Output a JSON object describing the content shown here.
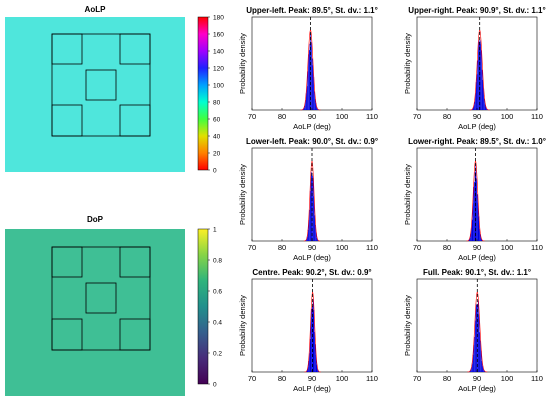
{
  "maps": [
    {
      "title": "AoLP",
      "image_color": "#4fe6dc",
      "colorbar": {
        "ticks": [
          "180",
          "160",
          "140",
          "120",
          "100",
          "80",
          "60",
          "40",
          "20",
          "0"
        ],
        "colormap": [
          "#ff0000",
          "#ff00c8",
          "#a000ff",
          "#2020ff",
          "#00a0ff",
          "#00ffd0",
          "#40ff40",
          "#e0e000",
          "#ff8000",
          "#ff0000"
        ]
      }
    },
    {
      "title": "DoP",
      "image_color": "#3fbf95",
      "colorbar": {
        "ticks": [
          "1",
          "0.8",
          "0.6",
          "0.4",
          "0.2",
          "0"
        ],
        "colormap": [
          "#fcf024",
          "#86d446",
          "#2fb47c",
          "#21908c",
          "#355f8d",
          "#472c7a",
          "#440154"
        ]
      }
    }
  ],
  "chart_data": [
    {
      "type": "bar",
      "title": "Upper-left. Peak: 89.5°, St. dv.: 1.1°",
      "xlabel": "AoLP (deg)",
      "ylabel": "Probability density",
      "xlim": [
        70,
        110
      ],
      "xticks": [
        "70",
        "80",
        "90",
        "100",
        "110"
      ],
      "peak": 89.5,
      "std": 1.1,
      "color": "#0000e0",
      "marker_color": "#ff0000"
    },
    {
      "type": "bar",
      "title": "Upper-right. Peak: 90.9°, St. dv.: 1.1°",
      "xlabel": "AoLP (deg)",
      "ylabel": "Probability density",
      "xlim": [
        70,
        110
      ],
      "xticks": [
        "70",
        "80",
        "90",
        "100",
        "110"
      ],
      "peak": 90.9,
      "std": 1.1,
      "color": "#0000e0",
      "marker_color": "#ff0000"
    },
    {
      "type": "bar",
      "title": "Lower-left. Peak: 90.0°, St. dv.: 0.9°",
      "xlabel": "AoLP (deg)",
      "ylabel": "Probability density",
      "xlim": [
        70,
        110
      ],
      "xticks": [
        "70",
        "80",
        "90",
        "100",
        "110"
      ],
      "peak": 90.0,
      "std": 0.9,
      "color": "#0000e0",
      "marker_color": "#ff0000"
    },
    {
      "type": "bar",
      "title": "Lower-right. Peak: 89.5°, St. dv.: 1.0°",
      "xlabel": "AoLP (deg)",
      "ylabel": "Probability density",
      "xlim": [
        70,
        110
      ],
      "xticks": [
        "70",
        "80",
        "90",
        "100",
        "110"
      ],
      "peak": 89.5,
      "std": 1.0,
      "color": "#0000e0",
      "marker_color": "#ff0000"
    },
    {
      "type": "bar",
      "title": "Centre. Peak: 90.2°, St. dv.: 0.9°",
      "xlabel": "AoLP (deg)",
      "ylabel": "Probability density",
      "xlim": [
        70,
        110
      ],
      "xticks": [
        "70",
        "80",
        "90",
        "100",
        "110"
      ],
      "peak": 90.2,
      "std": 0.9,
      "color": "#0000e0",
      "marker_color": "#ff0000"
    },
    {
      "type": "bar",
      "title": "Full. Peak: 90.1°, St. dv.: 1.1°",
      "xlabel": "AoLP (deg)",
      "ylabel": "Probability density",
      "xlim": [
        70,
        110
      ],
      "xticks": [
        "70",
        "80",
        "90",
        "100",
        "110"
      ],
      "peak": 90.1,
      "std": 1.1,
      "color": "#0000e0",
      "marker_color": "#ff0000"
    }
  ]
}
